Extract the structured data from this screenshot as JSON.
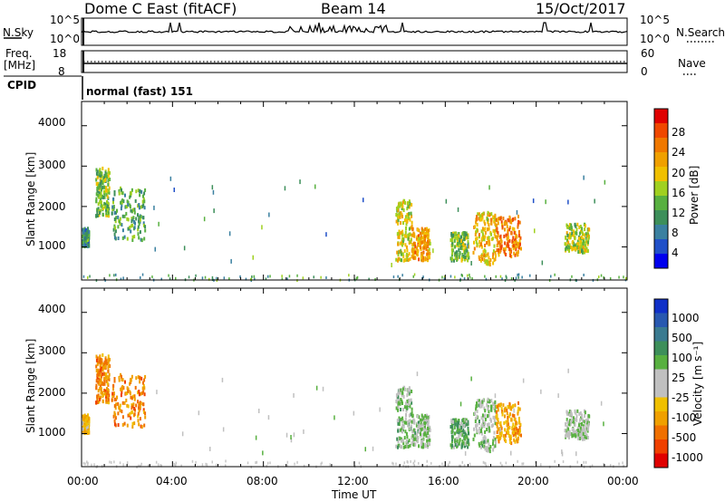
{
  "header": {
    "station": "Dome C East (fitACF)",
    "beam": "Beam 14",
    "date": "15/Oct/2017"
  },
  "nsky": {
    "label": "N.Sky",
    "right_label": "N.Search",
    "left_ticks": [
      "10^5",
      "10^0"
    ],
    "right_ticks": [
      "10^5",
      "10^0"
    ]
  },
  "freq": {
    "label_line1": "Freq.",
    "label_line2": "[MHz]",
    "left_ticks": [
      "18",
      "8"
    ],
    "right_ticks": [
      "60",
      "0"
    ],
    "right_label": "Nave"
  },
  "cpid": {
    "label": "CPID",
    "mode": "normal (fast) 151"
  },
  "time_axis": {
    "xlabel": "Time UT",
    "ticks": [
      "00:00",
      "04:00",
      "08:00",
      "12:00",
      "16:00",
      "20:00",
      "00:00"
    ]
  },
  "power_panel": {
    "ylabel": "Slant Range [km]",
    "yticks": [
      "4000",
      "3000",
      "2000",
      "1000"
    ],
    "colorbar_label": "Power [dB]",
    "colorbar_ticks": [
      "28",
      "24",
      "20",
      "16",
      "12",
      "8",
      "4"
    ],
    "colors": [
      "#0000ee",
      "#2050c8",
      "#3a80a0",
      "#3d8f5a",
      "#58b040",
      "#a0d020",
      "#f0c000",
      "#f0a000",
      "#f07800",
      "#f04800",
      "#e00000"
    ]
  },
  "velocity_panel": {
    "ylabel": "Slant Range [km]",
    "yticks": [
      "4000",
      "3000",
      "2000",
      "1000"
    ],
    "colorbar_label": "Velocity [m s⁻¹]",
    "colorbar_ticks": [
      "1000",
      "500",
      "100",
      "25",
      "-25",
      "-100",
      "-500",
      "-1000"
    ],
    "colors": [
      "#1030c8",
      "#2858b0",
      "#3a7a90",
      "#3d8f5a",
      "#58b040",
      "#c0c0c0",
      "#c0c0c0",
      "#f0c000",
      "#f0a000",
      "#f07000",
      "#f04000",
      "#e00000"
    ]
  },
  "chart_data": [
    {
      "type": "heatmap",
      "title": "Power",
      "x_range_hours": [
        0,
        24
      ],
      "y_range_km": [
        180,
        4600
      ],
      "value_range_db": [
        0,
        32
      ],
      "features": [
        {
          "t0": 0.0,
          "t1": 0.3,
          "r0": 1050,
          "r1": 1500,
          "value": 10
        },
        {
          "t0": 0.6,
          "t1": 1.2,
          "r0": 1800,
          "r1": 3000,
          "value": 14
        },
        {
          "t0": 1.3,
          "t1": 2.8,
          "r0": 1200,
          "r1": 2500,
          "value": 12
        },
        {
          "t0": 13.8,
          "t1": 14.5,
          "r0": 700,
          "r1": 2200,
          "value": 18
        },
        {
          "t0": 14.5,
          "t1": 15.3,
          "r0": 700,
          "r1": 1500,
          "value": 22
        },
        {
          "t0": 16.2,
          "t1": 17.0,
          "r0": 700,
          "r1": 1400,
          "value": 14
        },
        {
          "t0": 17.2,
          "t1": 18.2,
          "r0": 600,
          "r1": 1900,
          "value": 20
        },
        {
          "t0": 18.2,
          "t1": 19.3,
          "r0": 800,
          "r1": 1800,
          "value": 24
        },
        {
          "t0": 21.2,
          "t1": 22.3,
          "r0": 900,
          "r1": 1600,
          "value": 16
        }
      ]
    },
    {
      "type": "heatmap",
      "title": "Velocity",
      "x_range_hours": [
        0,
        24
      ],
      "y_range_km": [
        180,
        4600
      ],
      "value_range_ms": [
        -1000,
        1000
      ],
      "features": [
        {
          "t0": 0.0,
          "t1": 0.3,
          "r0": 1050,
          "r1": 1500,
          "value": -300
        },
        {
          "t0": 0.6,
          "t1": 1.2,
          "r0": 1800,
          "r1": 3000,
          "value": -500
        },
        {
          "t0": 1.3,
          "t1": 2.8,
          "r0": 1200,
          "r1": 2500,
          "value": -500
        },
        {
          "t0": 13.8,
          "t1": 14.5,
          "r0": 700,
          "r1": 2200,
          "value": 200
        },
        {
          "t0": 14.5,
          "t1": 15.3,
          "r0": 700,
          "r1": 1500,
          "value": 150
        },
        {
          "t0": 16.2,
          "t1": 17.0,
          "r0": 700,
          "r1": 1400,
          "value": 300
        },
        {
          "t0": 17.2,
          "t1": 18.2,
          "r0": 600,
          "r1": 1900,
          "value": 150
        },
        {
          "t0": 18.2,
          "t1": 19.3,
          "r0": 800,
          "r1": 1800,
          "value": -400
        },
        {
          "t0": 21.2,
          "t1": 22.3,
          "r0": 900,
          "r1": 1600,
          "value": 100
        }
      ]
    }
  ]
}
